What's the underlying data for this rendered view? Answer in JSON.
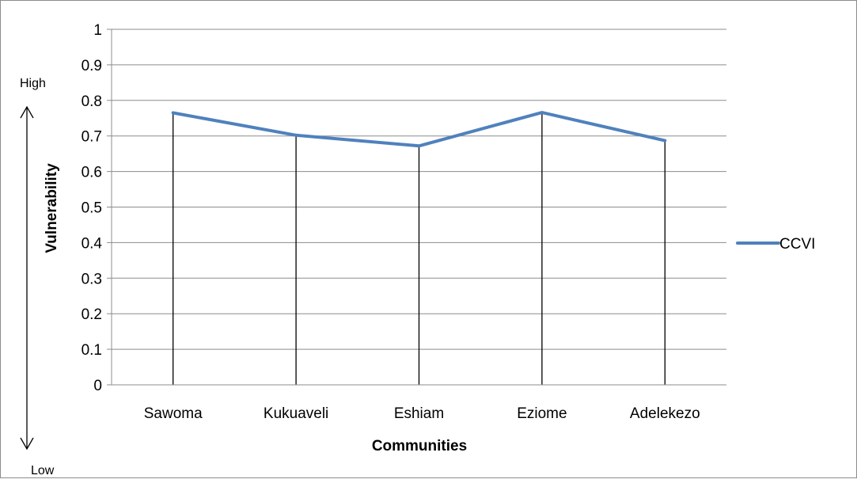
{
  "chart_data": {
    "type": "line",
    "title": "",
    "xlabel": "Communities",
    "ylabel": "Vulnerability",
    "categories": [
      "Sawoma",
      "Kukuaveli",
      "Eshiam",
      "Eziome",
      "Adelekezo"
    ],
    "series": [
      {
        "name": "CCVI",
        "values": [
          0.765,
          0.702,
          0.672,
          0.766,
          0.687
        ],
        "color": "#4f81bd"
      }
    ],
    "ylim": [
      0,
      1
    ],
    "yticks": [
      "0",
      "0.1",
      "0.2",
      "0.3",
      "0.4",
      "0.5",
      "0.6",
      "0.7",
      "0.8",
      "0.9",
      "1"
    ],
    "grid": true,
    "drop_lines": true,
    "legend": "right",
    "annotations": {
      "high": "High",
      "low": "Low"
    }
  }
}
